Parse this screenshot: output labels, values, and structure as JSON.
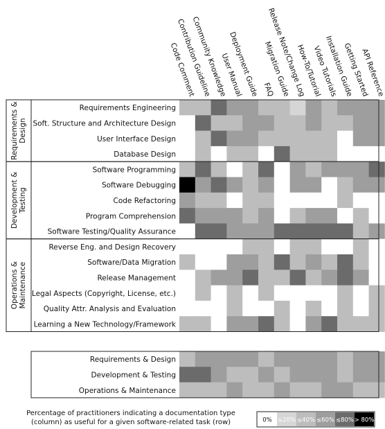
{
  "chart_data": {
    "type": "heatmap",
    "columns": [
      "Code Comment",
      "Contribution Guideline",
      "Community Knowledge",
      "User Manual",
      "Deployment Guide",
      "FAQ",
      "Migration Guide",
      "Release Note/Change Log",
      "How-To/Tutorial",
      "Video Tutorials",
      "Installation Guide",
      "Getting Started",
      "API Reference"
    ],
    "groups": [
      {
        "label": [
          "Requirements &",
          "Design"
        ],
        "rows": [
          {
            "label": "Requirements Engineering",
            "values": [
              2,
              2,
              4,
              3,
              3,
              2,
              2,
              1,
              3,
              2,
              3,
              3,
              3
            ]
          },
          {
            "label": "Soft. Structure and Architecture Design",
            "values": [
              0,
              4,
              2,
              2,
              3,
              3,
              2,
              2,
              3,
              2,
              2,
              3,
              3
            ]
          },
          {
            "label": "User Interface Design",
            "values": [
              0,
              2,
              4,
              3,
              3,
              2,
              2,
              2,
              2,
              2,
              0,
              3,
              3
            ]
          },
          {
            "label": "Database Design",
            "values": [
              0,
              2,
              0,
              2,
              2,
              0,
              4,
              2,
              2,
              2,
              0,
              0,
              0
            ]
          }
        ]
      },
      {
        "label": [
          "Development &",
          "Testing"
        ],
        "rows": [
          {
            "label": "Software Programming",
            "values": [
              2,
              4,
              2,
              0,
              2,
              4,
              0,
              3,
              2,
              3,
              3,
              3,
              4
            ]
          },
          {
            "label": "Software Debugging",
            "values": [
              5,
              3,
              4,
              3,
              2,
              3,
              0,
              3,
              3,
              0,
              2,
              3,
              3
            ]
          },
          {
            "label": "Code Refactoring",
            "values": [
              3,
              2,
              2,
              0,
              2,
              2,
              0,
              0,
              0,
              0,
              2,
              0,
              0
            ]
          },
          {
            "label": "Program Comprehension",
            "values": [
              4,
              3,
              3,
              3,
              2,
              3,
              0,
              2,
              3,
              3,
              0,
              2,
              0
            ]
          },
          {
            "label": "Software Testing/Quality Assurance",
            "values": [
              0,
              4,
              4,
              3,
              3,
              3,
              4,
              4,
              4,
              4,
              4,
              2,
              3
            ]
          }
        ]
      },
      {
        "label": [
          "Operations &",
          "Maintenance"
        ],
        "rows": [
          {
            "label": "Reverse Eng. and Design Recovery",
            "values": [
              0,
              0,
              0,
              0,
              2,
              2,
              0,
              2,
              2,
              0,
              0,
              2,
              0
            ]
          },
          {
            "label": "Software/Data Migration",
            "values": [
              2,
              0,
              0,
              3,
              3,
              2,
              4,
              2,
              3,
              2,
              4,
              2,
              0
            ]
          },
          {
            "label": "Release Management",
            "values": [
              0,
              2,
              3,
              3,
              4,
              2,
              2,
              4,
              2,
              3,
              4,
              3,
              0
            ]
          },
          {
            "label": "Legal Aspects (Copyright, License, etc.)",
            "values": [
              0,
              2,
              0,
              2,
              0,
              2,
              0,
              0,
              0,
              0,
              2,
              0,
              2
            ]
          },
          {
            "label": "Quality Attr. Analysis and Evaluation",
            "values": [
              0,
              0,
              0,
              2,
              0,
              0,
              2,
              0,
              2,
              0,
              2,
              0,
              2
            ]
          },
          {
            "label": "Learning a New Technology/Framework",
            "values": [
              2,
              2,
              0,
              3,
              3,
              4,
              2,
              0,
              3,
              4,
              2,
              2,
              2
            ]
          }
        ]
      }
    ],
    "summary": [
      {
        "label": "Requirements & Design",
        "values": [
          2,
          3,
          3,
          3,
          3,
          2,
          3,
          3,
          3,
          3,
          2,
          3,
          3
        ]
      },
      {
        "label": "Development & Testing",
        "values": [
          4,
          4,
          3,
          2,
          2,
          3,
          2,
          3,
          3,
          3,
          2,
          3,
          3
        ]
      },
      {
        "label": "Operations & Maintenance",
        "values": [
          2,
          2,
          2,
          3,
          2,
          2,
          3,
          2,
          2,
          3,
          3,
          2,
          2
        ]
      }
    ],
    "legend": [
      "0%",
      "≤20%",
      "≤40%",
      "≤60%",
      "≤80%",
      "> 80%"
    ],
    "caption": [
      "Percentage of practitioners indicating a documentation type",
      "(column) as useful for a given software-related task (row)"
    ]
  },
  "colors": {
    "bins": [
      "#ffffff",
      "#d6d6d6",
      "#bdbdbd",
      "#9e9e9e",
      "#6b6b6b",
      "#000000"
    ],
    "legend_text": [
      "#111111",
      "#ffffff",
      "#ffffff",
      "#ffffff",
      "#ffffff",
      "#ffffff"
    ]
  }
}
